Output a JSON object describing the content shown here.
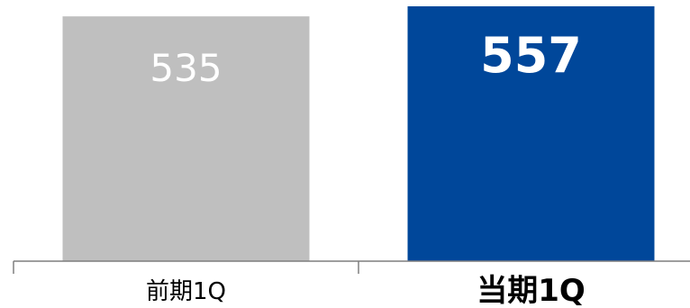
{
  "chart_data": {
    "type": "bar",
    "categories": [
      "前期1Q",
      "当期1Q"
    ],
    "values": [
      535,
      557
    ],
    "value_labels": [
      "535",
      "557"
    ],
    "colors": [
      "#bfbfbf",
      "#00479a"
    ],
    "emphasis": [
      false,
      true
    ],
    "axis_color": "#7f7f7f",
    "ylim": [
      0,
      557
    ]
  }
}
